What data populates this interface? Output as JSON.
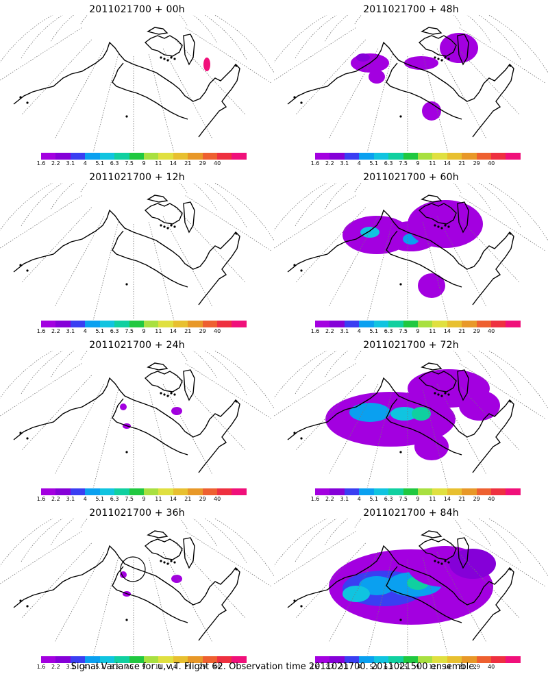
{
  "footer": "Signal Variance for u,v,T. Flight 62. Observation time 2011021700. 2011021500 ensemble.",
  "colorbar": {
    "labels": [
      "1.6",
      "2.2",
      "3.1",
      "4",
      "5.1",
      "6.3",
      "7.5",
      "9",
      "11",
      "14",
      "21",
      "29",
      "40"
    ],
    "colors": [
      "#a300e0",
      "#8500d8",
      "#3a3ef2",
      "#0aa0f0",
      "#10c4e0",
      "#10d0a0",
      "#20c840",
      "#a8e040",
      "#e0e040",
      "#e8c030",
      "#e89828",
      "#ee6030",
      "#ee3040",
      "#f0107a"
    ]
  },
  "panels": [
    {
      "id": "p00",
      "title": "2011021700 + 00h",
      "level": 0
    },
    {
      "id": "p48",
      "title": "2011021700 + 48h",
      "level": 2
    },
    {
      "id": "p12",
      "title": "2011021700 + 12h",
      "level": 0
    },
    {
      "id": "p60",
      "title": "2011021700 + 60h",
      "level": 3
    },
    {
      "id": "p24",
      "title": "2011021700 + 24h",
      "level": 1
    },
    {
      "id": "p72",
      "title": "2011021700 + 72h",
      "level": 4
    },
    {
      "id": "p36",
      "title": "2011021700 + 36h",
      "level": 1
    },
    {
      "id": "p84",
      "title": "2011021700 + 84h",
      "level": 5
    }
  ]
}
